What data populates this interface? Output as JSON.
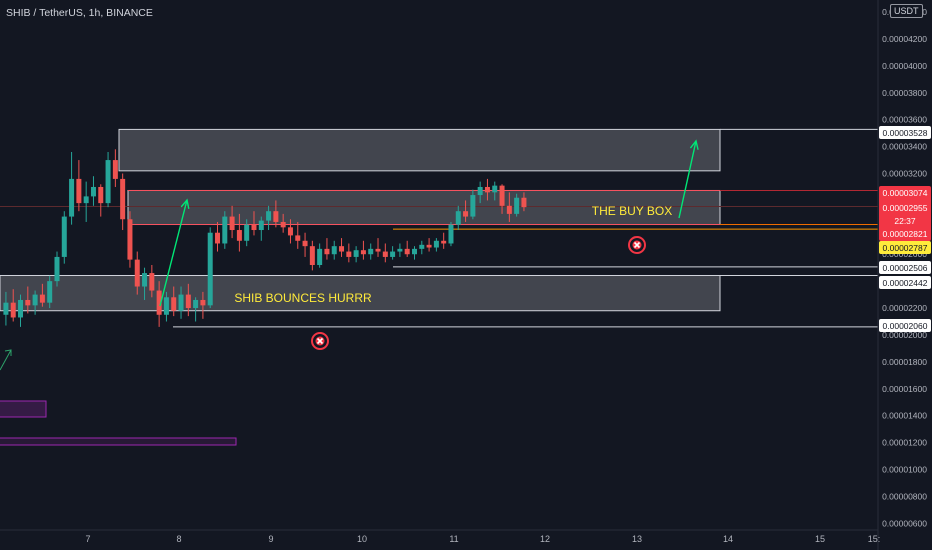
{
  "header": {
    "symbol_title": "SHIB / TetherUS, 1h, BINANCE",
    "currency": "USDT"
  },
  "chart_data": {
    "type": "candlestick",
    "title": "SHIB / TetherUS, 1h, BINANCE",
    "x_tick_labels": [
      "7",
      "8",
      "9",
      "10",
      "11",
      "12",
      "13",
      "14",
      "15",
      "15:"
    ],
    "y_tick_labels": [
      "0.00004400",
      "0.00004200",
      "0.00004000",
      "0.00003800",
      "0.00003600",
      "0.00003400",
      "0.00003200",
      "0.00003000",
      "0.00002800",
      "0.00002600",
      "0.00002400",
      "0.00002200",
      "0.00002000",
      "0.00001800",
      "0.00001600",
      "0.00001400",
      "0.00001200",
      "0.00001000",
      "0.00000800",
      "0.00000600"
    ],
    "ylim": [
      5.5e-06,
      4.49e-05
    ],
    "price_labels": [
      {
        "value": "0.00003528",
        "style": "white"
      },
      {
        "value": "0.00003074",
        "style": "red"
      },
      {
        "value": "0.00002955",
        "style": "red"
      },
      {
        "value": "22:37",
        "style": "red"
      },
      {
        "value": "0.00002821",
        "style": "red"
      },
      {
        "value": "0.00002787",
        "style": "yellow"
      },
      {
        "value": "0.00002506",
        "style": "white"
      },
      {
        "value": "0.00002442",
        "style": "white"
      },
      {
        "value": "0.00002060",
        "style": "white"
      }
    ],
    "candles": [
      {
        "x": 6.1,
        "o": 2.15e-05,
        "h": 2.32e-05,
        "l": 2.07e-05,
        "c": 2.24e-05
      },
      {
        "x": 6.18,
        "o": 2.24e-05,
        "h": 2.34e-05,
        "l": 2.1e-05,
        "c": 2.13e-05
      },
      {
        "x": 6.26,
        "o": 2.13e-05,
        "h": 2.3e-05,
        "l": 2.06e-05,
        "c": 2.26e-05
      },
      {
        "x": 6.34,
        "o": 2.26e-05,
        "h": 2.36e-05,
        "l": 2.16e-05,
        "c": 2.22e-05
      },
      {
        "x": 6.42,
        "o": 2.22e-05,
        "h": 2.33e-05,
        "l": 2.15e-05,
        "c": 2.3e-05
      },
      {
        "x": 6.5,
        "o": 2.3e-05,
        "h": 2.38e-05,
        "l": 2.21e-05,
        "c": 2.24e-05
      },
      {
        "x": 6.58,
        "o": 2.24e-05,
        "h": 2.44e-05,
        "l": 2.2e-05,
        "c": 2.4e-05
      },
      {
        "x": 6.66,
        "o": 2.4e-05,
        "h": 2.62e-05,
        "l": 2.36e-05,
        "c": 2.58e-05
      },
      {
        "x": 6.74,
        "o": 2.58e-05,
        "h": 2.92e-05,
        "l": 2.53e-05,
        "c": 2.88e-05
      },
      {
        "x": 6.82,
        "o": 2.88e-05,
        "h": 3.36e-05,
        "l": 2.82e-05,
        "c": 3.16e-05
      },
      {
        "x": 6.9,
        "o": 3.16e-05,
        "h": 3.3e-05,
        "l": 2.92e-05,
        "c": 2.98e-05
      },
      {
        "x": 6.98,
        "o": 2.98e-05,
        "h": 3.14e-05,
        "l": 2.84e-05,
        "c": 3.03e-05
      },
      {
        "x": 7.06,
        "o": 3.03e-05,
        "h": 3.18e-05,
        "l": 2.96e-05,
        "c": 3.1e-05
      },
      {
        "x": 7.14,
        "o": 3.1e-05,
        "h": 3.12e-05,
        "l": 2.88e-05,
        "c": 2.98e-05
      },
      {
        "x": 7.22,
        "o": 2.98e-05,
        "h": 3.36e-05,
        "l": 2.95e-05,
        "c": 3.3e-05
      },
      {
        "x": 7.3,
        "o": 3.3e-05,
        "h": 3.38e-05,
        "l": 3.1e-05,
        "c": 3.16e-05
      },
      {
        "x": 7.38,
        "o": 3.16e-05,
        "h": 3.2e-05,
        "l": 2.78e-05,
        "c": 2.86e-05
      },
      {
        "x": 7.46,
        "o": 2.86e-05,
        "h": 2.92e-05,
        "l": 2.5e-05,
        "c": 2.56e-05
      },
      {
        "x": 7.54,
        "o": 2.56e-05,
        "h": 2.62e-05,
        "l": 2.3e-05,
        "c": 2.36e-05
      },
      {
        "x": 7.62,
        "o": 2.36e-05,
        "h": 2.5e-05,
        "l": 2.26e-05,
        "c": 2.46e-05
      },
      {
        "x": 7.7,
        "o": 2.46e-05,
        "h": 2.52e-05,
        "l": 2.28e-05,
        "c": 2.33e-05
      },
      {
        "x": 7.78,
        "o": 2.33e-05,
        "h": 2.4e-05,
        "l": 2.06e-05,
        "c": 2.15e-05
      },
      {
        "x": 7.86,
        "o": 2.15e-05,
        "h": 2.32e-05,
        "l": 2.1e-05,
        "c": 2.28e-05
      },
      {
        "x": 7.94,
        "o": 2.28e-05,
        "h": 2.36e-05,
        "l": 2.14e-05,
        "c": 2.18e-05
      },
      {
        "x": 8.02,
        "o": 2.18e-05,
        "h": 2.36e-05,
        "l": 2.12e-05,
        "c": 2.3e-05
      },
      {
        "x": 8.1,
        "o": 2.3e-05,
        "h": 2.38e-05,
        "l": 2.14e-05,
        "c": 2.2e-05
      },
      {
        "x": 8.18,
        "o": 2.2e-05,
        "h": 2.28e-05,
        "l": 2.1e-05,
        "c": 2.26e-05
      },
      {
        "x": 8.26,
        "o": 2.26e-05,
        "h": 2.32e-05,
        "l": 2.12e-05,
        "c": 2.22e-05
      },
      {
        "x": 8.34,
        "o": 2.22e-05,
        "h": 2.8e-05,
        "l": 2.2e-05,
        "c": 2.76e-05
      },
      {
        "x": 8.42,
        "o": 2.76e-05,
        "h": 2.84e-05,
        "l": 2.62e-05,
        "c": 2.68e-05
      },
      {
        "x": 8.5,
        "o": 2.68e-05,
        "h": 2.92e-05,
        "l": 2.64e-05,
        "c": 2.88e-05
      },
      {
        "x": 8.58,
        "o": 2.88e-05,
        "h": 2.96e-05,
        "l": 2.72e-05,
        "c": 2.78e-05
      },
      {
        "x": 8.66,
        "o": 2.78e-05,
        "h": 2.9e-05,
        "l": 2.62e-05,
        "c": 2.7e-05
      },
      {
        "x": 8.74,
        "o": 2.7e-05,
        "h": 2.86e-05,
        "l": 2.66e-05,
        "c": 2.82e-05
      },
      {
        "x": 8.82,
        "o": 2.82e-05,
        "h": 2.92e-05,
        "l": 2.74e-05,
        "c": 2.78e-05
      },
      {
        "x": 8.9,
        "o": 2.78e-05,
        "h": 2.88e-05,
        "l": 2.7e-05,
        "c": 2.85e-05
      },
      {
        "x": 8.98,
        "o": 2.85e-05,
        "h": 2.96e-05,
        "l": 2.78e-05,
        "c": 2.92e-05
      },
      {
        "x": 9.06,
        "o": 2.92e-05,
        "h": 3e-05,
        "l": 2.8e-05,
        "c": 2.84e-05
      },
      {
        "x": 9.14,
        "o": 2.84e-05,
        "h": 2.9e-05,
        "l": 2.76e-05,
        "c": 2.8e-05
      },
      {
        "x": 9.22,
        "o": 2.8e-05,
        "h": 2.86e-05,
        "l": 2.68e-05,
        "c": 2.74e-05
      },
      {
        "x": 9.3,
        "o": 2.74e-05,
        "h": 2.84e-05,
        "l": 2.64e-05,
        "c": 2.7e-05
      },
      {
        "x": 9.38,
        "o": 2.7e-05,
        "h": 2.76e-05,
        "l": 2.58e-05,
        "c": 2.66e-05
      },
      {
        "x": 9.46,
        "o": 2.66e-05,
        "h": 2.7e-05,
        "l": 2.48e-05,
        "c": 2.52e-05
      },
      {
        "x": 9.54,
        "o": 2.52e-05,
        "h": 2.68e-05,
        "l": 2.5e-05,
        "c": 2.64e-05
      },
      {
        "x": 9.62,
        "o": 2.64e-05,
        "h": 2.72e-05,
        "l": 2.56e-05,
        "c": 2.6e-05
      },
      {
        "x": 9.7,
        "o": 2.6e-05,
        "h": 2.7e-05,
        "l": 2.56e-05,
        "c": 2.66e-05
      },
      {
        "x": 9.78,
        "o": 2.66e-05,
        "h": 2.72e-05,
        "l": 2.58e-05,
        "c": 2.62e-05
      },
      {
        "x": 9.86,
        "o": 2.62e-05,
        "h": 2.68e-05,
        "l": 2.54e-05,
        "c": 2.58e-05
      },
      {
        "x": 9.94,
        "o": 2.58e-05,
        "h": 2.66e-05,
        "l": 2.54e-05,
        "c": 2.63e-05
      },
      {
        "x": 10.02,
        "o": 2.63e-05,
        "h": 2.7e-05,
        "l": 2.56e-05,
        "c": 2.6e-05
      },
      {
        "x": 10.1,
        "o": 2.6e-05,
        "h": 2.68e-05,
        "l": 2.56e-05,
        "c": 2.64e-05
      },
      {
        "x": 10.18,
        "o": 2.64e-05,
        "h": 2.72e-05,
        "l": 2.58e-05,
        "c": 2.62e-05
      },
      {
        "x": 10.26,
        "o": 2.62e-05,
        "h": 2.68e-05,
        "l": 2.54e-05,
        "c": 2.58e-05
      },
      {
        "x": 10.34,
        "o": 2.58e-05,
        "h": 2.66e-05,
        "l": 2.56e-05,
        "c": 2.62e-05
      },
      {
        "x": 10.42,
        "o": 2.62e-05,
        "h": 2.68e-05,
        "l": 2.58e-05,
        "c": 2.64e-05
      },
      {
        "x": 10.5,
        "o": 2.64e-05,
        "h": 2.7e-05,
        "l": 2.58e-05,
        "c": 2.6e-05
      },
      {
        "x": 10.58,
        "o": 2.6e-05,
        "h": 2.66e-05,
        "l": 2.56e-05,
        "c": 2.64e-05
      },
      {
        "x": 10.66,
        "o": 2.64e-05,
        "h": 2.7e-05,
        "l": 2.6e-05,
        "c": 2.67e-05
      },
      {
        "x": 10.74,
        "o": 2.67e-05,
        "h": 2.72e-05,
        "l": 2.62e-05,
        "c": 2.65e-05
      },
      {
        "x": 10.82,
        "o": 2.65e-05,
        "h": 2.72e-05,
        "l": 2.62e-05,
        "c": 2.7e-05
      },
      {
        "x": 10.9,
        "o": 2.7e-05,
        "h": 2.76e-05,
        "l": 2.64e-05,
        "c": 2.68e-05
      },
      {
        "x": 10.98,
        "o": 2.68e-05,
        "h": 2.84e-05,
        "l": 2.66e-05,
        "c": 2.82e-05
      },
      {
        "x": 11.06,
        "o": 2.82e-05,
        "h": 2.96e-05,
        "l": 2.78e-05,
        "c": 2.92e-05
      },
      {
        "x": 11.14,
        "o": 2.92e-05,
        "h": 3e-05,
        "l": 2.84e-05,
        "c": 2.88e-05
      },
      {
        "x": 11.22,
        "o": 2.88e-05,
        "h": 3.08e-05,
        "l": 2.86e-05,
        "c": 3.04e-05
      },
      {
        "x": 11.3,
        "o": 3.04e-05,
        "h": 3.14e-05,
        "l": 2.98e-05,
        "c": 3.1e-05
      },
      {
        "x": 11.38,
        "o": 3.1e-05,
        "h": 3.16e-05,
        "l": 3e-05,
        "c": 3.06e-05
      },
      {
        "x": 11.46,
        "o": 3.06e-05,
        "h": 3.14e-05,
        "l": 3e-05,
        "c": 3.11e-05
      },
      {
        "x": 11.54,
        "o": 3.11e-05,
        "h": 3.12e-05,
        "l": 2.9e-05,
        "c": 2.96e-05
      },
      {
        "x": 11.62,
        "o": 2.96e-05,
        "h": 3.06e-05,
        "l": 2.84e-05,
        "c": 2.9e-05
      },
      {
        "x": 11.7,
        "o": 2.9e-05,
        "h": 3.05e-05,
        "l": 2.88e-05,
        "c": 3.02e-05
      },
      {
        "x": 11.78,
        "o": 3.02e-05,
        "h": 3.06e-05,
        "l": 2.92e-05,
        "c": 2.95e-05
      }
    ],
    "annotations": [
      {
        "text": "THE BUY BOX",
        "color": "#ffeb3b"
      },
      {
        "text": "SHIB BOUNCES HURRR",
        "color": "#ffeb3b"
      }
    ],
    "zones": [
      {
        "name": "upper-resistance-box",
        "from": 3.22e-05,
        "to": 3.528e-05
      },
      {
        "name": "buy-box",
        "from": 2.821e-05,
        "to": 3.074e-05
      },
      {
        "name": "support-box",
        "from": 2.18e-05,
        "to": 2.442e-05
      }
    ],
    "levels": [
      3.528e-05,
      3.074e-05,
      2.821e-05,
      2.787e-05,
      2.506e-05,
      2.442e-05,
      2.06e-05
    ],
    "grid": false,
    "colors": {
      "background": "#131722",
      "up": "#26a69a",
      "down": "#ef5350",
      "arrow": "#00e676",
      "annotation": "#ffeb3b",
      "marker": "#f23645",
      "purple": "#9c27b0",
      "axis_text": "#b2b5be"
    }
  }
}
